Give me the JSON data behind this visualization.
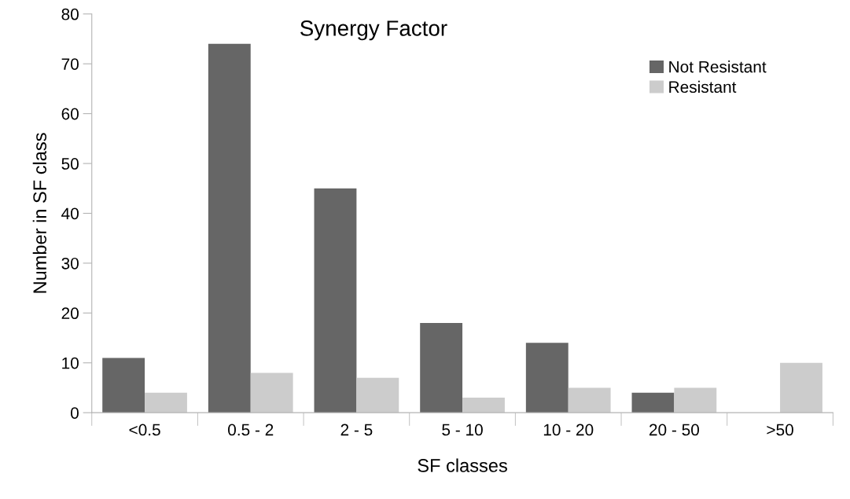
{
  "chart_data": {
    "type": "bar",
    "title": "Synergy Factor",
    "xlabel": "SF classes",
    "ylabel": "Number in SF class",
    "categories": [
      "<0.5",
      "0.5 - 2",
      "2 - 5",
      "5 - 10",
      "10 - 20",
      "20 - 50",
      ">50"
    ],
    "series": [
      {
        "name": "Not Resistant",
        "color": "#666666",
        "values": [
          11,
          74,
          45,
          18,
          14,
          4,
          0
        ]
      },
      {
        "name": "Resistant",
        "color": "#cccccc",
        "values": [
          4,
          8,
          7,
          3,
          5,
          5,
          10
        ]
      }
    ],
    "ylim": [
      0,
      80
    ],
    "yticks": [
      0,
      10,
      20,
      30,
      40,
      50,
      60,
      70,
      80
    ],
    "grid": false,
    "legend": "top right"
  }
}
